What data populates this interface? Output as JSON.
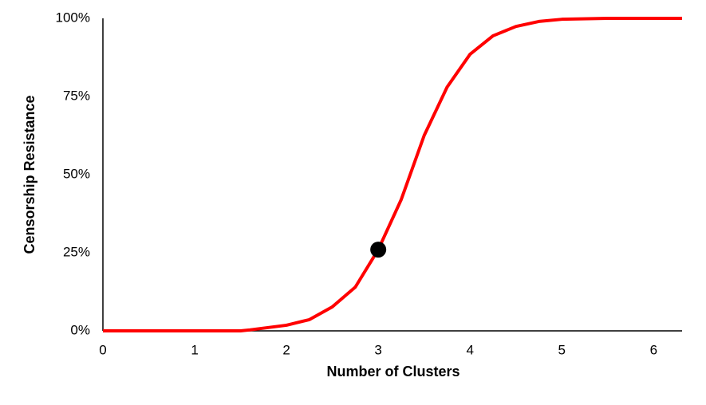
{
  "chart_data": {
    "type": "line",
    "x_label": "Number of Clusters",
    "y_label": "Censorship Resistance",
    "x": [
      0,
      0.5,
      1,
      1.5,
      1.6,
      2,
      2.25,
      2.5,
      2.75,
      3,
      3.25,
      3.5,
      3.75,
      4,
      4.25,
      4.5,
      4.75,
      5,
      5.5,
      6,
      6.31
    ],
    "series": [
      {
        "color": "#ff0000",
        "values": [
          0,
          0,
          0,
          0,
          0.3,
          1.8,
          3.6,
          7.7,
          14,
          26,
          42,
          62.5,
          78,
          88.5,
          94.4,
          97.4,
          99,
          99.7,
          100,
          100,
          100
        ]
      }
    ],
    "marker": {
      "x": 3,
      "y": 26,
      "color": "#000000"
    },
    "xlim": [
      0,
      6.31
    ],
    "ylim": [
      0,
      100
    ],
    "xticks": [
      0,
      1,
      2,
      3,
      4,
      5,
      6
    ],
    "yticks": [
      {
        "value": 0,
        "label": "0%"
      },
      {
        "value": 25,
        "label": "25%"
      },
      {
        "value": 50,
        "label": "50%"
      },
      {
        "value": 75,
        "label": "75%"
      },
      {
        "value": 100,
        "label": "100%"
      }
    ],
    "grid": false
  }
}
